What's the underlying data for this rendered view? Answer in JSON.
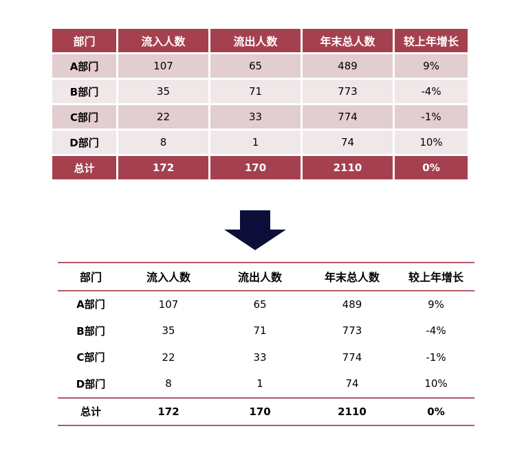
{
  "columns": [
    "部门",
    "流入人数",
    "流出人数",
    "年末总人数",
    "较上年增长"
  ],
  "rows": [
    [
      "A部门",
      "107",
      "65",
      "489",
      "9%"
    ],
    [
      "B部门",
      "35",
      "71",
      "773",
      "-4%"
    ],
    [
      "C部门",
      "22",
      "33",
      "774",
      "-1%"
    ],
    [
      "D部门",
      "8",
      "1",
      "74",
      "10%"
    ]
  ],
  "total": [
    "总计",
    "172",
    "170",
    "2110",
    "0%"
  ],
  "colors": {
    "header_fill": "#a5414f",
    "row_odd": "#e2cdd0",
    "row_even": "#f0e7e8",
    "rule_line": "#b05a67",
    "arrow": "#0d0f3a"
  },
  "arrow_icon": "down-arrow-icon"
}
